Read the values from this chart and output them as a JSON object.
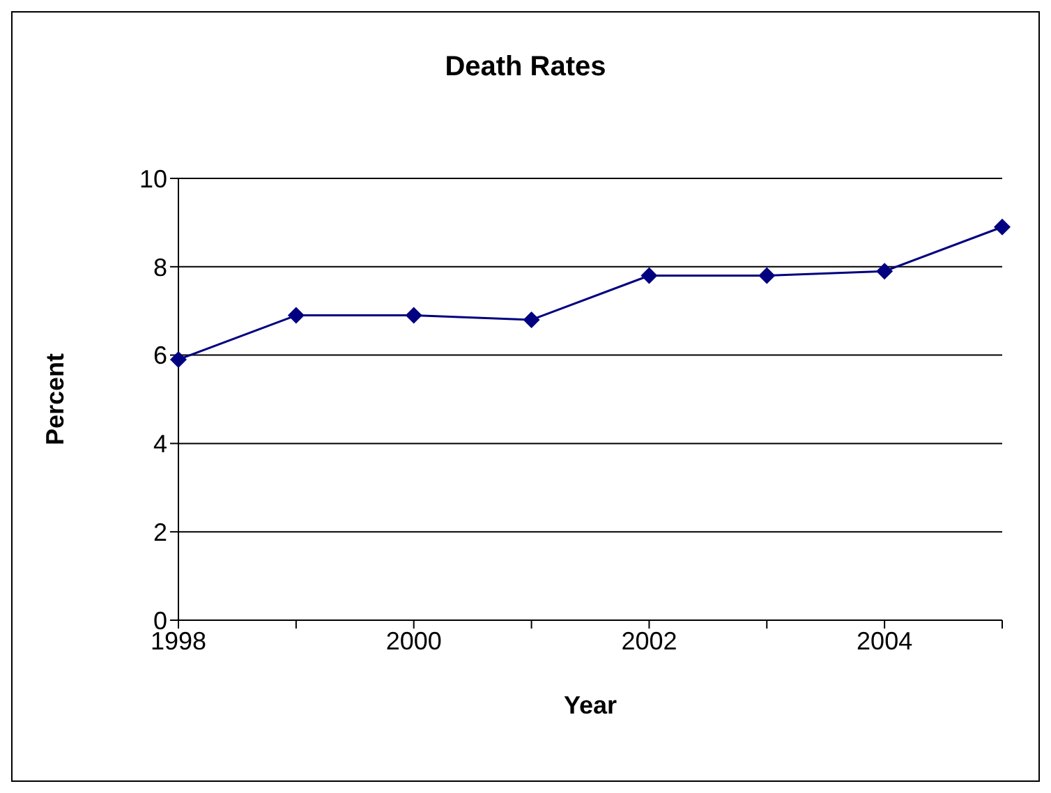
{
  "chart_data": {
    "type": "line",
    "title": "Death Rates",
    "xlabel": "Year",
    "ylabel": "Percent",
    "x": [
      1998,
      1999,
      2000,
      2001,
      2002,
      2003,
      2004,
      2005
    ],
    "series": [
      {
        "color": "#000080",
        "values": [
          5.9,
          6.9,
          6.9,
          6.8,
          7.8,
          7.8,
          7.9,
          8.9
        ]
      }
    ],
    "xlim": [
      1998,
      2005
    ],
    "xticks": [
      1998,
      {
        "value": 1999,
        "label": null
      },
      2000,
      {
        "value": 2001,
        "label": null
      },
      2002,
      {
        "value": 2003,
        "label": null
      },
      2004,
      {
        "value": 2005,
        "label": null
      }
    ],
    "ylim": [
      0,
      10
    ],
    "yticks": [
      0,
      2,
      4,
      6,
      8,
      10
    ],
    "grid": "y",
    "marker": "diamond",
    "legend": false
  }
}
